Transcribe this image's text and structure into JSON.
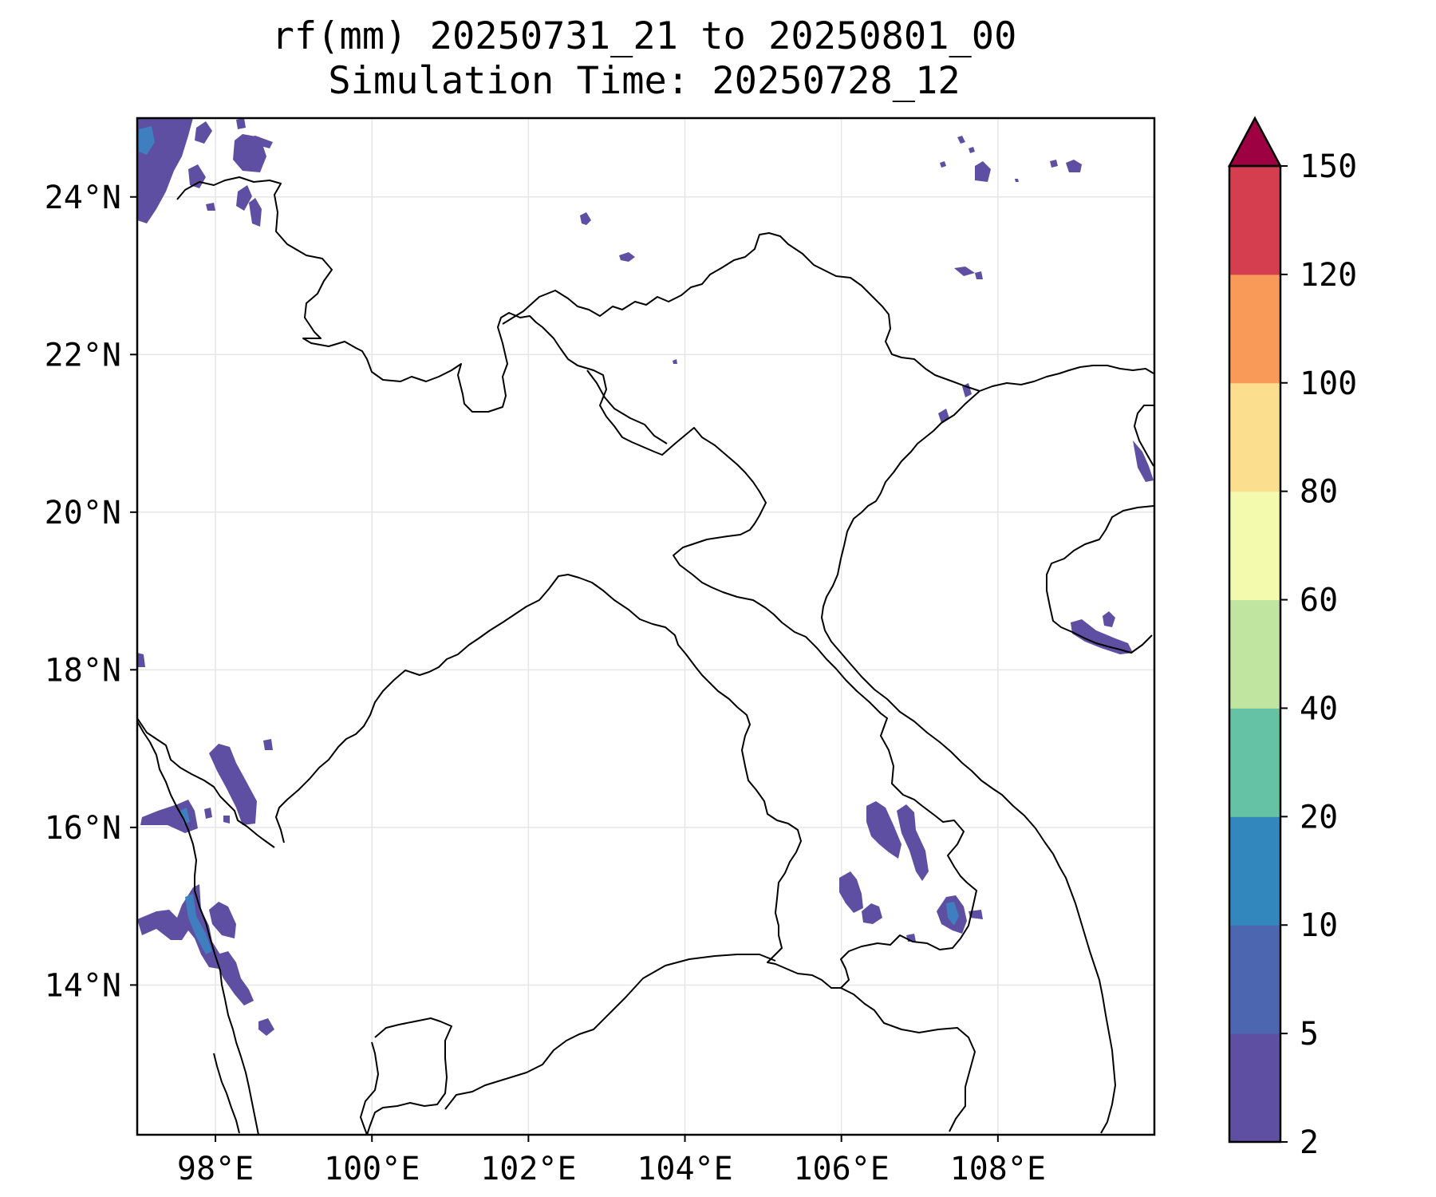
{
  "title": {
    "line1": "rf(mm) 20250731_21 to 20250801_00",
    "line2": "Simulation Time: 20250728_12"
  },
  "map": {
    "lon_ticks": [
      "98°E",
      "100°E",
      "102°E",
      "104°E",
      "106°E",
      "108°E"
    ],
    "lat_ticks": [
      "24°N",
      "22°N",
      "20°N",
      "18°N",
      "16°N",
      "14°N"
    ],
    "lon_range": [
      97.0,
      110.0
    ],
    "lat_range": [
      12.1,
      25.0
    ],
    "gridlines": true,
    "rain_color": "#5e4fa2",
    "rain_color_heavy": "#3f7fbf"
  },
  "colorbar": {
    "levels": [
      "2",
      "5",
      "10",
      "20",
      "40",
      "60",
      "80",
      "100",
      "120",
      "150"
    ],
    "colors": [
      "#5e4fa2",
      "#4c66b0",
      "#3288bd",
      "#66c2a5",
      "#bfe5a0",
      "#f4faad",
      "#fcdf8e",
      "#f99a58",
      "#d53e4f",
      "#9e0142"
    ],
    "extend": "max"
  }
}
